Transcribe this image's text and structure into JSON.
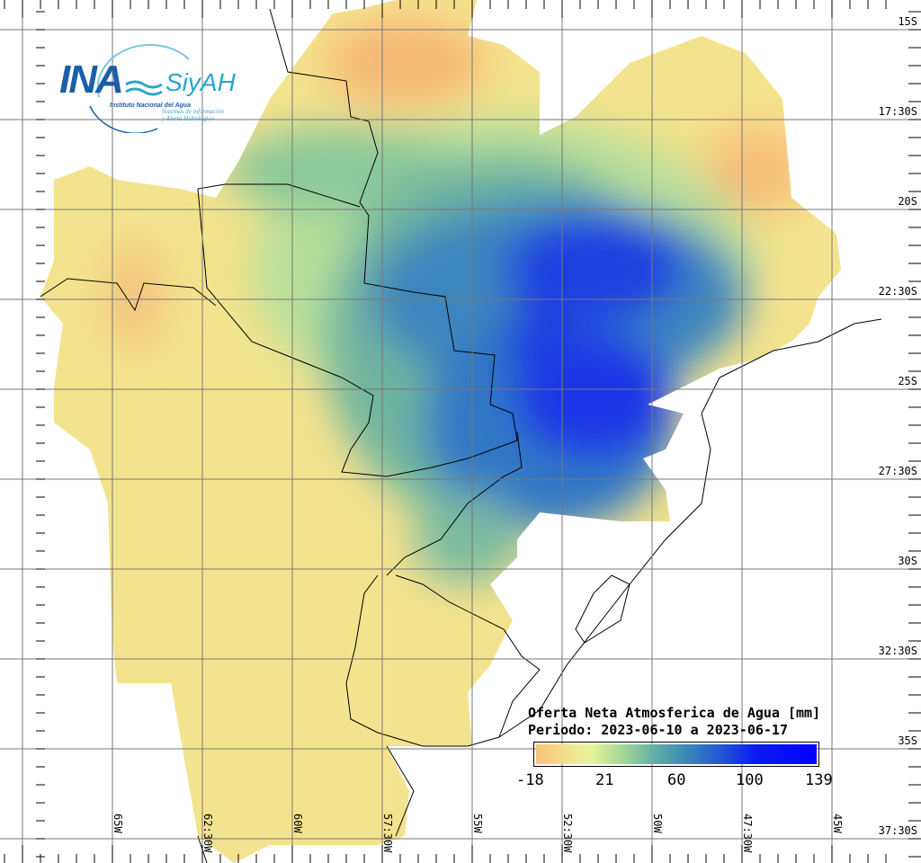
{
  "logo": {
    "brand": "INA",
    "product": "SiyAH",
    "institution": "Instituto Nacional del Agua",
    "system_line1": "Sistemas de información",
    "system_line2": "y Alerta Hidrológico"
  },
  "legend": {
    "title": "Oferta Neta Atmosferica de Agua [mm]",
    "period": "Periodo: 2023-06-10 a 2023-06-17",
    "ticks": [
      "-18",
      "21",
      "60",
      "100",
      "139"
    ],
    "colors": [
      "#f9c27a",
      "#efe992",
      "#9ed398",
      "#3d8fb4",
      "#2256d6",
      "#0000ff"
    ]
  },
  "axes": {
    "latitudes": [
      "15S",
      "17:30S",
      "20S",
      "22:30S",
      "25S",
      "27:30S",
      "30S",
      "32:30S",
      "35S",
      "37:30S"
    ],
    "longitudes": [
      "65W",
      "62:30W",
      "60W",
      "57:30W",
      "55W",
      "52:30W",
      "50W",
      "47:30W",
      "45W"
    ]
  }
}
